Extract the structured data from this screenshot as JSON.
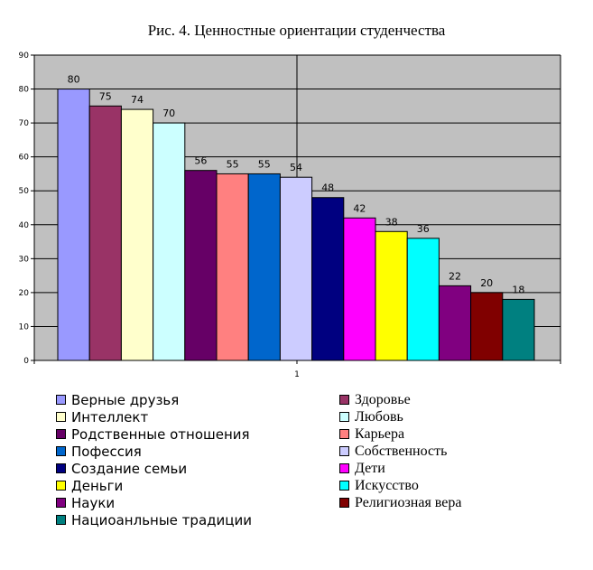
{
  "chart_data": {
    "type": "bar",
    "title": "Рис. 4. Ценностные ориентации студенчества",
    "xlabel": "",
    "ylabel": "",
    "categories": [
      "1"
    ],
    "ylim": [
      0,
      90
    ],
    "yticks": [
      0,
      10,
      20,
      30,
      40,
      50,
      60,
      70,
      80,
      90
    ],
    "grid": true,
    "legend_position": "bottom",
    "series": [
      {
        "name": "Верные друзья",
        "value": 80,
        "color": "#9999ff"
      },
      {
        "name": "Здоровье",
        "value": 75,
        "color": "#993366"
      },
      {
        "name": "Интеллект",
        "value": 74,
        "color": "#ffffcc"
      },
      {
        "name": "Любовь",
        "value": 70,
        "color": "#ccffff"
      },
      {
        "name": "Родственные отношения",
        "value": 56,
        "color": "#660066"
      },
      {
        "name": "Карьера",
        "value": 55,
        "color": "#ff8080"
      },
      {
        "name": "Пофессия",
        "value": 55,
        "color": "#0066cc"
      },
      {
        "name": "Собственность",
        "value": 54,
        "color": "#ccccff"
      },
      {
        "name": "Создание семьи",
        "value": 48,
        "color": "#000080"
      },
      {
        "name": "Дети",
        "value": 42,
        "color": "#ff00ff"
      },
      {
        "name": "Деньги",
        "value": 38,
        "color": "#ffff00"
      },
      {
        "name": "Искусство",
        "value": 36,
        "color": "#00ffff"
      },
      {
        "name": "Науки",
        "value": 22,
        "color": "#800080"
      },
      {
        "name": "Религиозная вера",
        "value": 20,
        "color": "#800000"
      },
      {
        "name": "Нациоанльные традиции",
        "value": 18,
        "color": "#008080"
      }
    ]
  }
}
